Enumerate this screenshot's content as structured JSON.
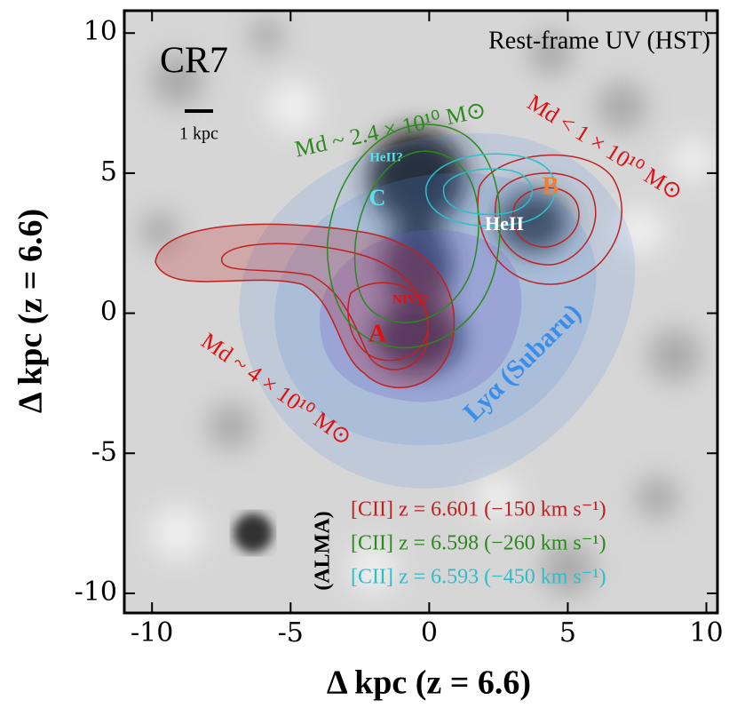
{
  "chart_data": {
    "type": "image",
    "title": "CR7",
    "subtitle": "Rest-frame UV (HST)",
    "xlabel": "Δ kpc (z = 6.6)",
    "ylabel": "Δ kpc (z = 6.6)",
    "xlim": [
      -11,
      10.4
    ],
    "ylim": [
      -10.7,
      10.8
    ],
    "xticks": [
      -10,
      -5,
      0,
      5,
      10
    ],
    "yticks": [
      -10,
      -5,
      0,
      5,
      10
    ],
    "scale_bar": "1 kpc",
    "series": [
      {
        "name": "[CII] z = 6.601 (−150 km s⁻¹)",
        "color": "#c0201e"
      },
      {
        "name": "[CII] z = 6.598 (−260 km s⁻¹)",
        "color": "#2a8a1c"
      },
      {
        "name": "[CII] z = 6.593 (−450 km s⁻¹)",
        "color": "#2bbfc9"
      }
    ],
    "legend_title": "(ALMA)",
    "annotations": [
      "Md ~ 2.4 × 10¹⁰ M⊙",
      "Md < 1 × 10¹⁰ M⊙",
      "Md ~ 4 × 10¹⁰ M⊙",
      "Lyα (Subaru)",
      "A",
      "B",
      "C",
      "HeII?",
      "HeII",
      "NIV]?"
    ]
  }
}
